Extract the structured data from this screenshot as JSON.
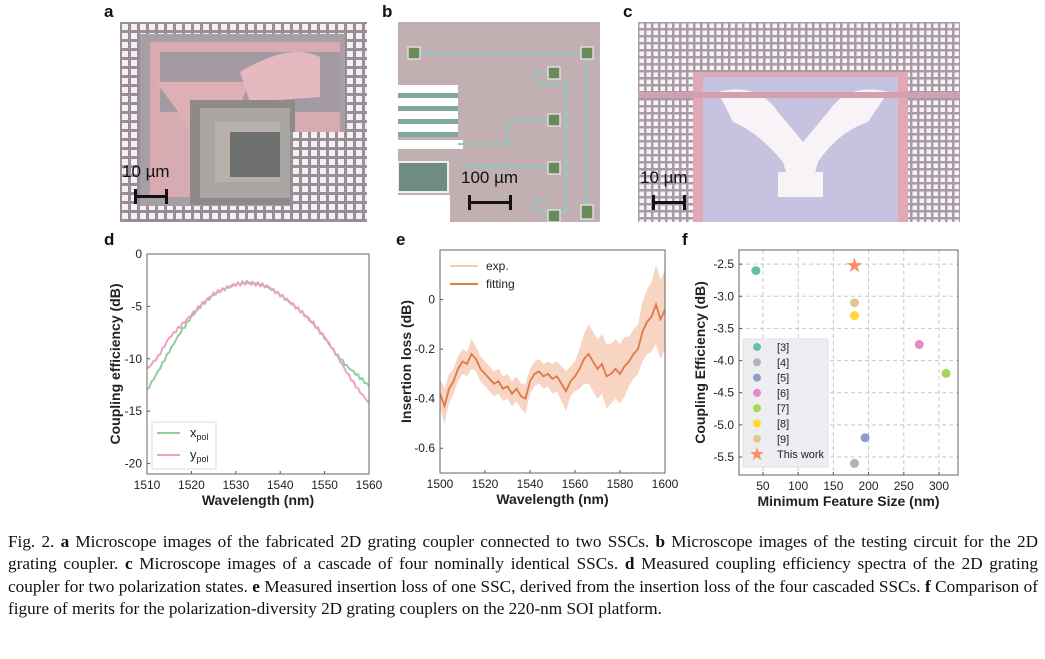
{
  "panels": {
    "a": {
      "label": "a",
      "scale": "10 µm"
    },
    "b": {
      "label": "b",
      "scale": "100 µm"
    },
    "c": {
      "label": "c",
      "scale": "10 µm"
    },
    "d": {
      "label": "d"
    },
    "e": {
      "label": "e"
    },
    "f": {
      "label": "f"
    }
  },
  "chart_data": [
    {
      "id": "d",
      "type": "line",
      "xlabel": "Wavelength (nm)",
      "ylabel": "Coupling efficiency (dB)",
      "xlim": [
        1510,
        1560
      ],
      "ylim": [
        -21,
        0
      ],
      "xticks": [
        1510,
        1520,
        1530,
        1540,
        1550,
        1560
      ],
      "yticks": [
        0,
        -5,
        -10,
        -15,
        -20
      ],
      "grid": false,
      "legend": "bottom-left",
      "x": [
        1510,
        1512.5,
        1515,
        1517.5,
        1520,
        1522.5,
        1525,
        1527.5,
        1530,
        1532.5,
        1535,
        1537.5,
        1540,
        1542.5,
        1545,
        1547.5,
        1550,
        1552.5,
        1555,
        1557.5,
        1560
      ],
      "series": [
        {
          "name": "x",
          "sub": "pol",
          "color": "#8fcf9f",
          "values": [
            -13,
            -11.2,
            -9.3,
            -7.5,
            -6.0,
            -4.8,
            -3.9,
            -3.3,
            -2.9,
            -2.7,
            -2.8,
            -3.2,
            -3.9,
            -4.7,
            -5.6,
            -6.7,
            -8.0,
            -9.5,
            -10.7,
            -11.6,
            -12.6
          ]
        },
        {
          "name": "y",
          "sub": "pol",
          "color": "#f0a0c0",
          "values": [
            -11,
            -9.8,
            -8.0,
            -6.9,
            -5.8,
            -4.7,
            -3.8,
            -3.3,
            -2.9,
            -2.8,
            -2.9,
            -3.2,
            -3.9,
            -4.7,
            -5.6,
            -6.6,
            -7.9,
            -9.5,
            -11.3,
            -12.9,
            -14.2
          ]
        }
      ]
    },
    {
      "id": "e",
      "type": "line",
      "xlabel": "Wavelength (nm)",
      "ylabel": "Insertion loss (dB)",
      "xlim": [
        1500,
        1600
      ],
      "ylim": [
        -0.7,
        0.2
      ],
      "xticks": [
        1500,
        1520,
        1540,
        1560,
        1580,
        1600
      ],
      "yticks": [
        0,
        -0.2,
        -0.4,
        -0.6
      ],
      "grid": false,
      "legend": "top-left",
      "x": [
        1500,
        1502,
        1504,
        1506,
        1508,
        1510,
        1512,
        1514,
        1516,
        1518,
        1520,
        1522,
        1524,
        1526,
        1528,
        1530,
        1532,
        1534,
        1536,
        1538,
        1540,
        1542,
        1544,
        1546,
        1548,
        1550,
        1552,
        1554,
        1556,
        1558,
        1560,
        1562,
        1564,
        1566,
        1568,
        1570,
        1572,
        1574,
        1576,
        1578,
        1580,
        1582,
        1584,
        1586,
        1588,
        1590,
        1592,
        1594,
        1596,
        1598,
        1600
      ],
      "series": [
        {
          "name": "exp.",
          "color": "#f6c9b3",
          "kind": "band",
          "spread": [
            0.06,
            0.07,
            0.06,
            0.05,
            0.05,
            0.05,
            0.05,
            0.06,
            0.05,
            0.05,
            0.05,
            0.05,
            0.05,
            0.05,
            0.05,
            0.05,
            0.05,
            0.05,
            0.05,
            0.06,
            0.05,
            0.05,
            0.05,
            0.05,
            0.05,
            0.06,
            0.06,
            0.07,
            0.08,
            0.06,
            0.06,
            0.08,
            0.1,
            0.12,
            0.12,
            0.12,
            0.12,
            0.13,
            0.12,
            0.12,
            0.12,
            0.12,
            0.1,
            0.1,
            0.1,
            0.12,
            0.13,
            0.14,
            0.16,
            0.16,
            0.16
          ]
        },
        {
          "name": "fitting",
          "color": "#e07848",
          "kind": "line",
          "values": [
            -0.38,
            -0.43,
            -0.36,
            -0.33,
            -0.28,
            -0.25,
            -0.26,
            -0.22,
            -0.24,
            -0.28,
            -0.3,
            -0.32,
            -0.34,
            -0.33,
            -0.36,
            -0.35,
            -0.38,
            -0.36,
            -0.39,
            -0.4,
            -0.33,
            -0.3,
            -0.29,
            -0.31,
            -0.3,
            -0.32,
            -0.31,
            -0.34,
            -0.37,
            -0.33,
            -0.31,
            -0.28,
            -0.24,
            -0.22,
            -0.25,
            -0.28,
            -0.26,
            -0.31,
            -0.3,
            -0.28,
            -0.3,
            -0.27,
            -0.25,
            -0.22,
            -0.2,
            -0.13,
            -0.09,
            -0.07,
            -0.02,
            -0.08,
            -0.04
          ]
        }
      ]
    },
    {
      "id": "f",
      "type": "scatter",
      "xlabel": "Minimum Feature Size (nm)",
      "ylabel": "Coupling Efficiency (dB)",
      "xlim": [
        16,
        327
      ],
      "ylim": [
        -5.78,
        -2.28
      ],
      "xticks": [
        50,
        100,
        150,
        200,
        250,
        300
      ],
      "yticks": [
        -2.5,
        -3.0,
        -3.5,
        -4.0,
        -4.5,
        -5.0,
        -5.5
      ],
      "ytick_labels": [
        "-2.5",
        "-3.0",
        "-3.5",
        "-4.0",
        "-4.5",
        "-5.0",
        "-5.5"
      ],
      "grid": true,
      "legend": "bottom-left",
      "series": [
        {
          "name": "[3]",
          "color": "#66c2a5",
          "marker": "circle",
          "x": 40,
          "y": -2.6
        },
        {
          "name": "[4]",
          "color": "#b3b3b3",
          "marker": "circle",
          "x": 180,
          "y": -5.6
        },
        {
          "name": "[5]",
          "color": "#8da0cb",
          "marker": "circle",
          "x": 195,
          "y": -5.2
        },
        {
          "name": "[6]",
          "color": "#e78ac3",
          "marker": "circle",
          "x": 272,
          "y": -3.75
        },
        {
          "name": "[7]",
          "color": "#a6d854",
          "marker": "circle",
          "x": 310,
          "y": -4.2
        },
        {
          "name": "[8]",
          "color": "#ffd92f",
          "marker": "circle",
          "x": 180,
          "y": -3.3
        },
        {
          "name": "[9]",
          "color": "#e5c494",
          "marker": "circle",
          "x": 180,
          "y": -3.1
        },
        {
          "name": "This work",
          "color": "#fc8d62",
          "marker": "star",
          "x": 180,
          "y": -2.53
        }
      ]
    }
  ],
  "caption": {
    "prefix": "Fig. 2. ",
    "parts": [
      {
        "label": "a",
        "text": " Microscope images of the fabricated 2D grating coupler connected to two SSCs. "
      },
      {
        "label": "b",
        "text": " Microscope images of the testing circuit for the 2D grating coupler. "
      },
      {
        "label": "c",
        "text": " Microscope images of a cascade of four nominally identical SSCs. "
      },
      {
        "label": "d",
        "text": " Measured coupling efficiency spectra of the 2D grating coupler for two polarization states. "
      },
      {
        "label": "e",
        "text": " Measured insertion loss of one SSC, derived from the insertion loss of the four cascaded SSCs. "
      },
      {
        "label": "f",
        "text": " Comparison of figure of merits for the polarization-diversity 2D grating couplers on the 220-nm SOI platform."
      }
    ]
  }
}
